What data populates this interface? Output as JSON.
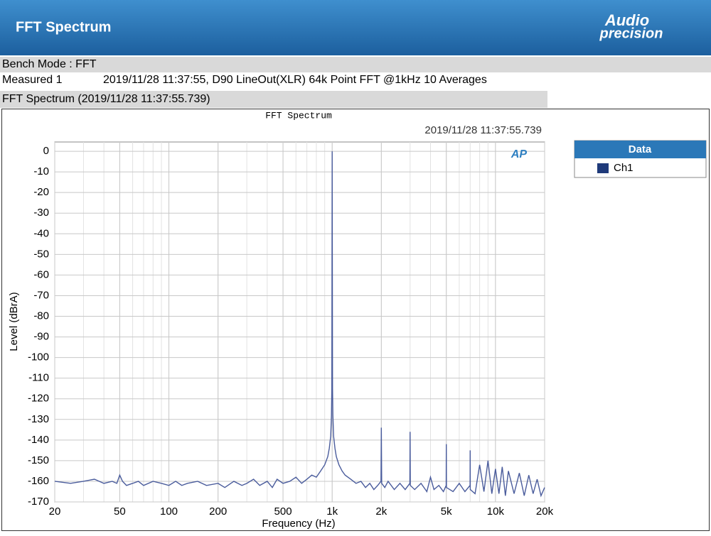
{
  "header": {
    "title": "FFT Spectrum",
    "logo_line1": "Audio",
    "logo_line2": "precision"
  },
  "info": {
    "bench_mode": "Bench Mode : FFT",
    "measured_label": "Measured 1",
    "measured_desc": "2019/11/28 11:37:55, D90 LineOut(XLR) 64k Point FFT @1kHz 10 Averages",
    "section_title": "FFT Spectrum (2019/11/28 11:37:55.739)"
  },
  "chart_data": {
    "type": "line",
    "title": "FFT Spectrum",
    "subtitle": "2019/11/28 11:37:55.739",
    "logo": "AP",
    "xlabel": "Frequency (Hz)",
    "ylabel": "Level (dBrA)",
    "legend_title": "Data",
    "legend": "right",
    "grid": true,
    "xscale": "log",
    "xlim": [
      20,
      20000
    ],
    "ylim": [
      -170,
      4.5
    ],
    "xticks": [
      20,
      50,
      100,
      200,
      500,
      {
        "value": 1000,
        "label": "1k"
      },
      {
        "value": 2000,
        "label": "2k"
      },
      {
        "value": 5000,
        "label": "5k"
      },
      {
        "value": 10000,
        "label": "10k"
      },
      {
        "value": 20000,
        "label": "20k"
      }
    ],
    "yticks": [
      0,
      -10,
      -20,
      -30,
      -40,
      -50,
      -60,
      -70,
      -80,
      -90,
      -100,
      -110,
      -120,
      -130,
      -140,
      -150,
      -160,
      -170
    ],
    "x": [
      20,
      25,
      30,
      35,
      40,
      45,
      48,
      50,
      52,
      55,
      60,
      65,
      70,
      80,
      90,
      100,
      110,
      120,
      130,
      150,
      170,
      200,
      220,
      250,
      280,
      300,
      330,
      360,
      400,
      430,
      460,
      500,
      550,
      600,
      650,
      700,
      750,
      800,
      850,
      900,
      940,
      960,
      980,
      990,
      995,
      1000,
      1005,
      1010,
      1020,
      1040,
      1060,
      1100,
      1150,
      1200,
      1300,
      1400,
      1500,
      1600,
      1700,
      1800,
      1900,
      1990,
      2000,
      2010,
      2100,
      2200,
      2400,
      2600,
      2800,
      2990,
      3000,
      3010,
      3200,
      3500,
      3800,
      4000,
      4200,
      4500,
      4800,
      4990,
      5000,
      5010,
      5500,
      6000,
      6500,
      6990,
      7000,
      7010,
      7500,
      8000,
      8500,
      9000,
      9500,
      10000,
      10500,
      11000,
      11500,
      12000,
      13000,
      14000,
      15000,
      16000,
      17000,
      18000,
      19000,
      20000
    ],
    "series": [
      {
        "name": "Ch1",
        "color": "#4a5c9c",
        "legend_color": "#1f3a7a",
        "values": [
          -160,
          -161,
          -160,
          -159,
          -161,
          -160,
          -161,
          -157,
          -160,
          -162,
          -161,
          -160,
          -162,
          -160,
          -161,
          -162,
          -160,
          -162,
          -161,
          -160,
          -162,
          -161,
          -163,
          -160,
          -162,
          -161,
          -159,
          -162,
          -160,
          -163,
          -159,
          -161,
          -160,
          -158,
          -161,
          -159,
          -157,
          -158,
          -155,
          -152,
          -148,
          -144,
          -138,
          -128,
          -115,
          0,
          -115,
          -128,
          -138,
          -144,
          -148,
          -152,
          -155,
          -157,
          -159,
          -161,
          -160,
          -163,
          -161,
          -164,
          -162,
          -160,
          -134,
          -161,
          -163,
          -160,
          -164,
          -161,
          -164,
          -161,
          -136,
          -162,
          -164,
          -161,
          -165,
          -158,
          -164,
          -162,
          -165,
          -162,
          -142,
          -163,
          -165,
          -161,
          -165,
          -162,
          -145,
          -164,
          -166,
          -152,
          -165,
          -150,
          -166,
          -154,
          -166,
          -153,
          -167,
          -155,
          -166,
          -156,
          -167,
          -157,
          -166,
          -159,
          -167,
          -163
        ]
      }
    ]
  }
}
